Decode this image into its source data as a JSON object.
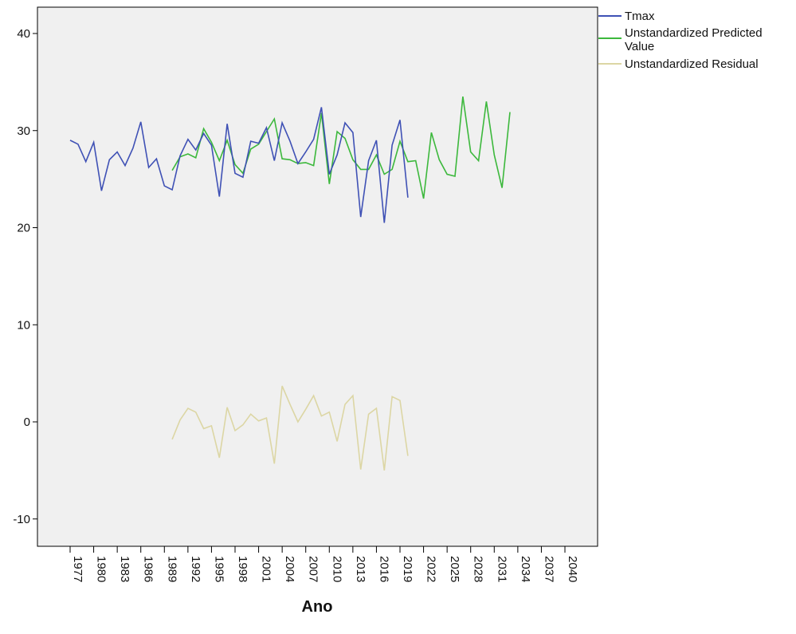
{
  "chart_data": {
    "type": "line",
    "title": "",
    "xlabel": "Ano",
    "ylabel": "",
    "xlim": [
      1975,
      2045
    ],
    "ylim": [
      -13,
      43
    ],
    "grid": false,
    "legend_placement": "top-right (outside plot)",
    "background": "#f0f0f0",
    "x_ticks": [
      1977,
      1980,
      1983,
      1986,
      1989,
      1992,
      1995,
      1998,
      2001,
      2004,
      2007,
      2010,
      2013,
      2016,
      2019,
      2022,
      2025,
      2028,
      2031,
      2034,
      2037,
      2040
    ],
    "x_tick_labels": [
      "1977",
      "1980",
      "1983",
      "1986",
      "1989",
      "1992",
      "1995",
      "1998",
      "2001",
      "2004",
      "2007",
      "2010",
      "2013",
      "2016",
      "2019",
      "2022",
      "2025",
      "2028",
      "2031",
      "2034",
      "2037",
      "2040"
    ],
    "y_ticks": [
      -10,
      0,
      10,
      20,
      30,
      40
    ],
    "y_tick_labels": [
      "-10",
      "0",
      "10",
      "20",
      "30",
      "40"
    ],
    "series": [
      {
        "name": "Tmax",
        "color": "#3f51b5",
        "x": [
          1977,
          1978,
          1979,
          1980,
          1981,
          1982,
          1983,
          1984,
          1985,
          1986,
          1987,
          1988,
          1989,
          1990,
          1991,
          1992,
          1993,
          1994,
          1995,
          1996,
          1997,
          1998,
          1999,
          2000,
          2001,
          2002,
          2003,
          2004,
          2005,
          2006,
          2007,
          2008,
          2009,
          2010,
          2011,
          2012,
          2013,
          2014,
          2015,
          2016,
          2017,
          2018,
          2019,
          2020,
          2021
        ],
        "values": [
          29.0,
          28.6,
          26.8,
          28.8,
          23.8,
          27.0,
          27.8,
          26.4,
          28.2,
          30.9,
          26.2,
          27.1,
          24.3,
          23.9,
          27.4,
          29.1,
          28.0,
          29.7,
          28.5,
          23.2,
          30.7,
          25.6,
          25.2,
          28.9,
          28.7,
          30.3,
          26.9,
          30.8,
          28.9,
          26.6,
          27.8,
          29.1,
          32.4,
          25.5,
          27.5,
          30.8,
          29.8,
          21.1,
          26.9,
          29.0,
          20.5,
          28.5,
          31.1,
          23.1,
          null
        ],
        "note_last": ""
      },
      {
        "name": "Unstandardized Predicted Value",
        "color": "#3cb83c",
        "x": [
          1990,
          1991,
          1992,
          1993,
          1994,
          1995,
          1996,
          1997,
          1998,
          1999,
          2000,
          2001,
          2002,
          2003,
          2004,
          2005,
          2006,
          2007,
          2008,
          2009,
          2010,
          2011,
          2012,
          2013,
          2014,
          2015,
          2016,
          2017,
          2018,
          2019,
          2020,
          2021,
          2022,
          2023,
          2024,
          2025,
          2026,
          2027,
          2028,
          2029,
          2030,
          2031,
          2032,
          2033
        ],
        "values": [
          25.9,
          27.3,
          27.6,
          27.2,
          30.2,
          28.8,
          26.9,
          29.0,
          26.5,
          25.6,
          28.1,
          28.6,
          29.9,
          31.2,
          27.1,
          27.0,
          26.6,
          26.7,
          26.4,
          31.8,
          24.5,
          29.9,
          29.2,
          27.0,
          26.0,
          26.0,
          27.5,
          25.5,
          26.0,
          28.9,
          26.8,
          26.9,
          23.0,
          29.8,
          27.0,
          25.5,
          25.3,
          33.5,
          27.8,
          26.9,
          33.0,
          27.5,
          24.1,
          31.9
        ]
      },
      {
        "name": "Unstandardized Residual",
        "color": "#dcd6a4",
        "x": [
          1990,
          1991,
          1992,
          1993,
          1994,
          1995,
          1996,
          1997,
          1998,
          1999,
          2000,
          2001,
          2002,
          2003,
          2004,
          2005,
          2006,
          2007,
          2008,
          2009,
          2010,
          2011,
          2012,
          2013,
          2014,
          2015,
          2016,
          2017,
          2018,
          2019,
          2020
        ],
        "values": [
          -1.8,
          0.2,
          1.4,
          1.0,
          -0.7,
          -0.4,
          -3.7,
          1.5,
          -0.9,
          -0.3,
          0.8,
          0.1,
          0.4,
          -4.3,
          3.7,
          1.8,
          0.0,
          1.3,
          2.7,
          0.6,
          1.0,
          -2.0,
          1.8,
          2.7,
          -4.9,
          0.8,
          1.4,
          -5.0,
          2.6,
          2.2,
          -3.5
        ]
      }
    ]
  }
}
